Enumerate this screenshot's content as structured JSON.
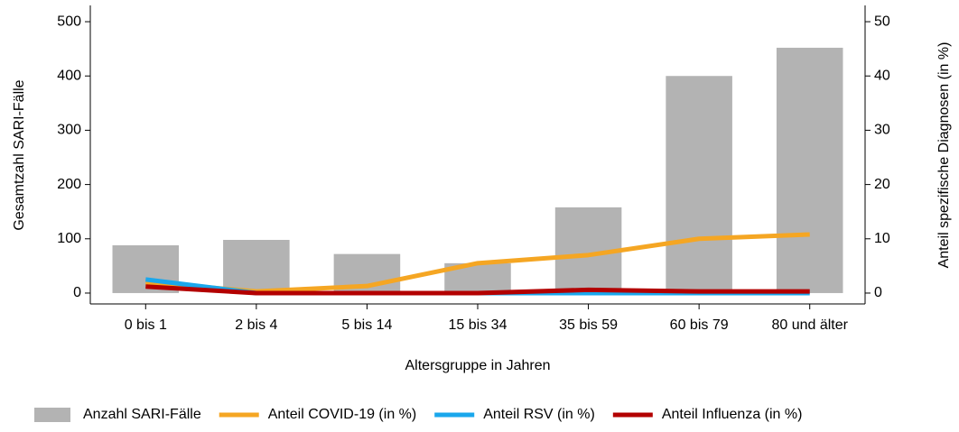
{
  "chart_data": {
    "type": "bar_line",
    "x_label": "Altersgruppe in Jahren",
    "y_label": "Gesamtzahl SARI-Fälle",
    "y2_label": "Anteil spezifische Diagnosen (in %)",
    "categories": [
      "0 bis 1",
      "2 bis 4",
      "5 bis 14",
      "15 bis 34",
      "35 bis 59",
      "60 bis 79",
      "80 und älter"
    ],
    "ylim": [
      -20,
      530
    ],
    "yticks": [
      0,
      100,
      200,
      300,
      400,
      500
    ],
    "y2lim": [
      -2,
      53
    ],
    "y2ticks": [
      0,
      10,
      20,
      30,
      40,
      50
    ],
    "series": [
      {
        "name": "Anzahl SARI-Fälle",
        "kind": "bar",
        "color": "#b3b3b3",
        "values": [
          88,
          98,
          72,
          55,
          158,
          400,
          452
        ]
      },
      {
        "name": "Anteil COVID-19 (in %)",
        "kind": "line",
        "axis": "y2",
        "color": "#f5a623",
        "values": [
          2,
          0.3,
          1.3,
          5.5,
          7,
          10,
          10.8
        ]
      },
      {
        "name": "Anteil RSV (in %)",
        "kind": "line",
        "axis": "y2",
        "color": "#1aa7ec",
        "values": [
          2.5,
          0,
          0,
          0,
          0,
          0,
          0
        ]
      },
      {
        "name": "Anteil Influenza (in %)",
        "kind": "line",
        "axis": "y2",
        "color": "#b30000",
        "values": [
          1.2,
          0,
          0,
          0,
          0.6,
          0.3,
          0.3
        ]
      }
    ]
  }
}
